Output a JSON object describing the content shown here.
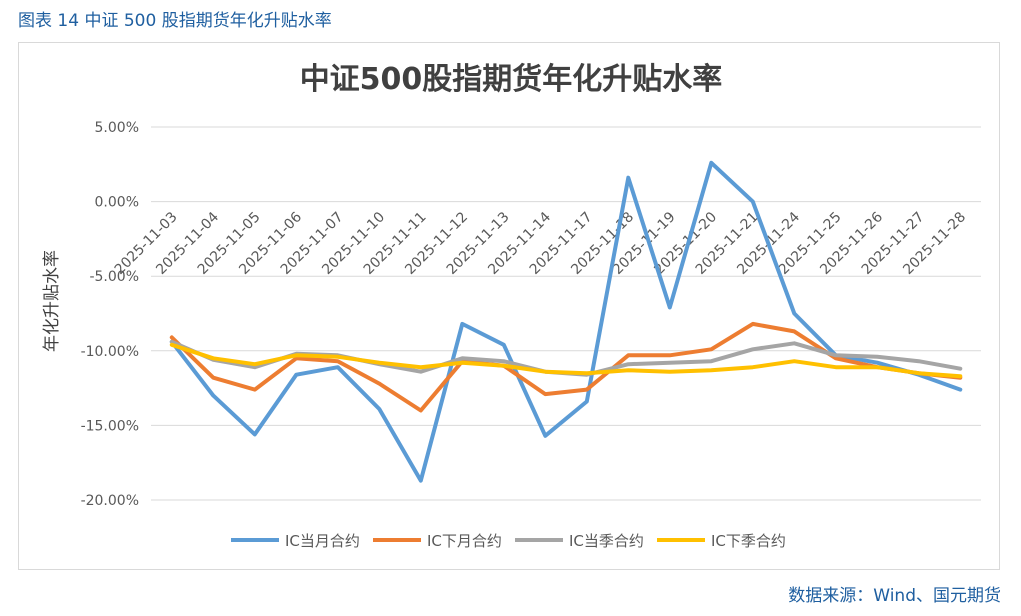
{
  "figure_caption": "图表 14 中证 500 股指期货年化升贴水率",
  "source": "数据来源：Wind、国元期货",
  "chart_data": {
    "type": "line",
    "title": "中证500股指期货年化升贴水率",
    "xlabel": "",
    "ylabel": "年化升贴水率",
    "ylim": [
      -0.2,
      0.05
    ],
    "y_ticks": [
      0.05,
      0.0,
      -0.05,
      -0.1,
      -0.15,
      -0.2
    ],
    "y_tick_labels": [
      "5.00%",
      "0.00%",
      "-5.00%",
      "-10.00%",
      "-15.00%",
      "-20.00%"
    ],
    "grid": true,
    "legend_position": "bottom",
    "categories": [
      "2025-11-03",
      "2025-11-04",
      "2025-11-05",
      "2025-11-06",
      "2025-11-07",
      "2025-11-10",
      "2025-11-11",
      "2025-11-12",
      "2025-11-13",
      "2025-11-14",
      "2025-11-17",
      "2025-11-18",
      "2025-11-19",
      "2025-11-20",
      "2025-11-21",
      "2025-11-24",
      "2025-11-25",
      "2025-11-26",
      "2025-11-27",
      "2025-11-28"
    ],
    "series": [
      {
        "name": "IC当月合约",
        "color": "#5b9bd5",
        "values": [
          -0.094,
          -0.13,
          -0.156,
          -0.116,
          -0.111,
          -0.139,
          -0.187,
          -0.082,
          -0.096,
          -0.157,
          -0.134,
          0.016,
          -0.071,
          0.026,
          0.0,
          -0.075,
          -0.103,
          -0.108,
          -0.116,
          -0.126
        ]
      },
      {
        "name": "IC下月合约",
        "color": "#ed7d31",
        "values": [
          -0.091,
          -0.118,
          -0.126,
          -0.105,
          -0.107,
          -0.122,
          -0.14,
          -0.107,
          -0.11,
          -0.129,
          -0.126,
          -0.103,
          -0.103,
          -0.099,
          -0.082,
          -0.087,
          -0.105,
          -0.111,
          -0.115,
          -0.118
        ]
      },
      {
        "name": "IC当季合约",
        "color": "#a5a5a5",
        "values": [
          -0.094,
          -0.106,
          -0.111,
          -0.102,
          -0.103,
          -0.109,
          -0.114,
          -0.105,
          -0.107,
          -0.114,
          -0.116,
          -0.109,
          -0.108,
          -0.107,
          -0.099,
          -0.095,
          -0.103,
          -0.104,
          -0.107,
          -0.112
        ]
      },
      {
        "name": "IC下季合约",
        "color": "#ffc000",
        "values": [
          -0.096,
          -0.105,
          -0.109,
          -0.103,
          -0.104,
          -0.108,
          -0.111,
          -0.108,
          -0.11,
          -0.114,
          -0.115,
          -0.113,
          -0.114,
          -0.113,
          -0.111,
          -0.107,
          -0.111,
          -0.111,
          -0.115,
          -0.117
        ]
      }
    ]
  }
}
